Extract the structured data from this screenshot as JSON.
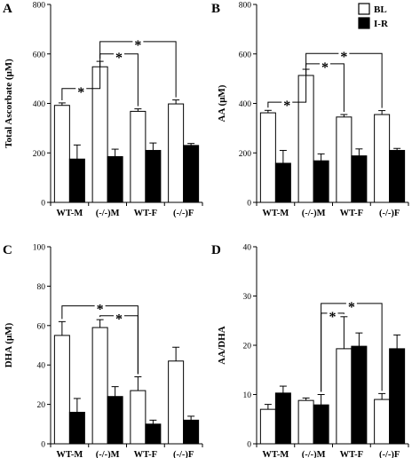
{
  "legend": [
    {
      "label": "BL",
      "color": "#ffffff"
    },
    {
      "label": "I-R",
      "color": "#000000"
    }
  ],
  "categories": [
    "WT-M",
    "(-/-)M",
    "WT-F",
    "(-/-)F"
  ],
  "star_label": "*",
  "chart_data": [
    {
      "type": "bar",
      "panel": "A",
      "ylabel": "Total Ascorbate (μM)",
      "ylim": [
        0,
        800
      ],
      "yticks": [
        0,
        200,
        400,
        600,
        800
      ],
      "categories": [
        "WT-M",
        "(-/-)M",
        "WT-F",
        "(-/-)F"
      ],
      "series": [
        {
          "name": "BL",
          "values": [
            392,
            548,
            368,
            398
          ],
          "errors": [
            10,
            22,
            10,
            16
          ]
        },
        {
          "name": "I-R",
          "values": [
            175,
            185,
            210,
            230
          ],
          "errors": [
            57,
            30,
            30,
            8
          ]
        }
      ],
      "significance": [
        {
          "from": [
            0,
            "BL"
          ],
          "to": [
            1,
            "BL"
          ],
          "level": 460
        },
        {
          "from": [
            1,
            "BL"
          ],
          "to": [
            2,
            "BL"
          ],
          "level": 600
        },
        {
          "from": [
            1,
            "BL"
          ],
          "to": [
            3,
            "BL"
          ],
          "level": 650
        }
      ]
    },
    {
      "type": "bar",
      "panel": "B",
      "ylabel": "AA (μM)",
      "ylim": [
        0,
        800
      ],
      "yticks": [
        0,
        200,
        400,
        600,
        800
      ],
      "categories": [
        "WT-M",
        "(-/-)M",
        "WT-F",
        "(-/-)F"
      ],
      "series": [
        {
          "name": "BL",
          "values": [
            362,
            513,
            345,
            355
          ],
          "errors": [
            10,
            25,
            10,
            16
          ]
        },
        {
          "name": "I-R",
          "values": [
            158,
            168,
            188,
            210
          ],
          "errors": [
            52,
            28,
            28,
            8
          ]
        }
      ],
      "significance": [
        {
          "from": [
            0,
            "BL"
          ],
          "to": [
            1,
            "BL"
          ],
          "level": 405
        },
        {
          "from": [
            1,
            "BL"
          ],
          "to": [
            2,
            "BL"
          ],
          "level": 560
        },
        {
          "from": [
            1,
            "BL"
          ],
          "to": [
            3,
            "BL"
          ],
          "level": 602
        }
      ]
    },
    {
      "type": "bar",
      "panel": "C",
      "ylabel": "DHA (μM)",
      "ylim": [
        0,
        100
      ],
      "yticks": [
        0,
        20,
        40,
        60,
        80,
        100
      ],
      "categories": [
        "WT-M",
        "(-/-)M",
        "WT-F",
        "(-/-)F"
      ],
      "series": [
        {
          "name": "BL",
          "values": [
            55,
            59,
            27,
            42
          ],
          "errors": [
            7,
            4,
            7,
            7
          ]
        },
        {
          "name": "I-R",
          "values": [
            16,
            24,
            10,
            12
          ],
          "errors": [
            7,
            5,
            2,
            2
          ]
        }
      ],
      "significance": [
        {
          "from": [
            0,
            "BL"
          ],
          "to": [
            2,
            "BL"
          ],
          "level": 70
        },
        {
          "from": [
            1,
            "BL"
          ],
          "to": [
            2,
            "BL"
          ],
          "level": 65
        }
      ]
    },
    {
      "type": "bar",
      "panel": "D",
      "ylabel": "AA/DHA",
      "ylim": [
        0,
        40
      ],
      "yticks": [
        0,
        10,
        20,
        30,
        40
      ],
      "categories": [
        "WT-M",
        "(-/-)M",
        "WT-F",
        "(-/-)F"
      ],
      "series": [
        {
          "name": "BL",
          "values": [
            7,
            8.8,
            19.3,
            9
          ],
          "errors": [
            1,
            0.5,
            6.5,
            1.2
          ]
        },
        {
          "name": "I-R",
          "values": [
            10.3,
            7.9,
            19.8,
            19.3
          ],
          "errors": [
            1.4,
            2.1,
            2.7,
            2.8
          ]
        }
      ],
      "significance": [
        {
          "from": [
            1,
            "I-R"
          ],
          "to": [
            2,
            "BL"
          ],
          "level": 26.5
        },
        {
          "from": [
            1,
            "I-R"
          ],
          "to": [
            3,
            "BL"
          ],
          "level": 28.5
        }
      ]
    }
  ]
}
